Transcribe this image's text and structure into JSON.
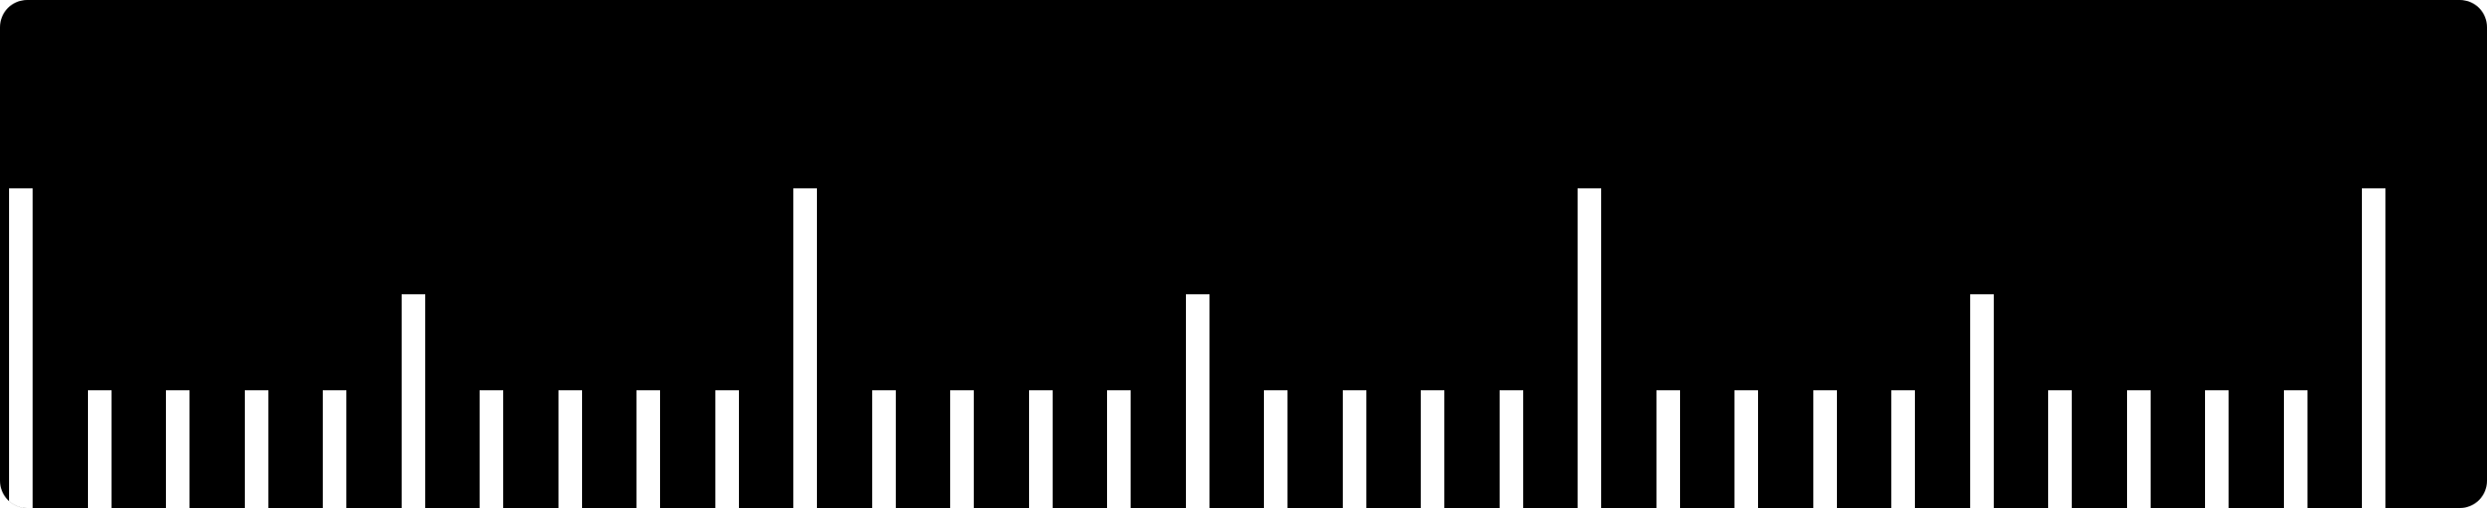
{
  "ruler": {
    "background_color": "#000000",
    "tick_color": "#ffffff",
    "ticks": [
      {
        "kind": "major"
      },
      {
        "kind": "minor"
      },
      {
        "kind": "minor"
      },
      {
        "kind": "minor"
      },
      {
        "kind": "minor"
      },
      {
        "kind": "half"
      },
      {
        "kind": "minor"
      },
      {
        "kind": "minor"
      },
      {
        "kind": "minor"
      },
      {
        "kind": "minor"
      },
      {
        "kind": "major"
      },
      {
        "kind": "minor"
      },
      {
        "kind": "minor"
      },
      {
        "kind": "minor"
      },
      {
        "kind": "minor"
      },
      {
        "kind": "half"
      },
      {
        "kind": "minor"
      },
      {
        "kind": "minor"
      },
      {
        "kind": "minor"
      },
      {
        "kind": "minor"
      },
      {
        "kind": "major"
      },
      {
        "kind": "minor"
      },
      {
        "kind": "minor"
      },
      {
        "kind": "minor"
      },
      {
        "kind": "minor"
      },
      {
        "kind": "half"
      },
      {
        "kind": "minor"
      },
      {
        "kind": "minor"
      },
      {
        "kind": "minor"
      },
      {
        "kind": "minor"
      },
      {
        "kind": "major"
      }
    ]
  }
}
